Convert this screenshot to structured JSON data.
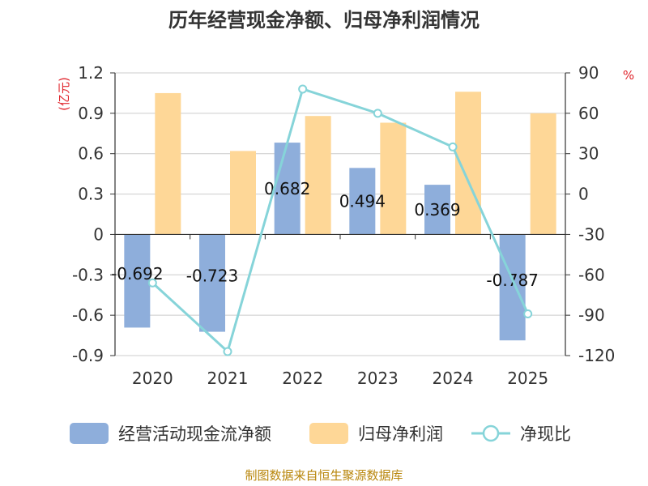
{
  "chart_data": {
    "type": "bar+line",
    "title": "历年经营现金净额、归母净利润情况",
    "categories": [
      "2020",
      "2021",
      "2022",
      "2023",
      "2024",
      "2025"
    ],
    "series": [
      {
        "name": "经营活动现金流净额",
        "type": "bar",
        "axis": "left",
        "values": [
          -0.692,
          -0.723,
          0.682,
          0.494,
          0.369,
          -0.787
        ],
        "labels": [
          "-0.692",
          "-0.723",
          "0.682",
          "0.494",
          "0.369",
          "-0.787"
        ],
        "color": "#8eaedb"
      },
      {
        "name": "归母净利润",
        "type": "bar",
        "axis": "left",
        "values": [
          1.05,
          0.62,
          0.88,
          0.83,
          1.06,
          0.9
        ],
        "color": "#fed797"
      },
      {
        "name": "净现比",
        "type": "line",
        "axis": "right",
        "values": [
          -66,
          -117,
          78,
          60,
          35,
          -89
        ],
        "color": "#86d4d9"
      }
    ],
    "left_axis": {
      "unit": "(亿元)",
      "min": -0.9,
      "max": 1.2,
      "ticks": [
        "1.2",
        "0.9",
        "0.6",
        "0.3",
        "0",
        "-0.3",
        "-0.6",
        "-0.9"
      ],
      "tick_values": [
        1.2,
        0.9,
        0.6,
        0.3,
        0,
        -0.3,
        -0.6,
        -0.9
      ]
    },
    "right_axis": {
      "unit": "%",
      "min": -120,
      "max": 90,
      "ticks": [
        "90",
        "60",
        "30",
        "0",
        "-30",
        "-60",
        "-90",
        "-120"
      ],
      "tick_values": [
        90,
        60,
        30,
        0,
        -30,
        -60,
        -90,
        -120
      ]
    },
    "grid": true,
    "legend_position": "bottom",
    "source": "制图数据来自恒生聚源数据库"
  }
}
